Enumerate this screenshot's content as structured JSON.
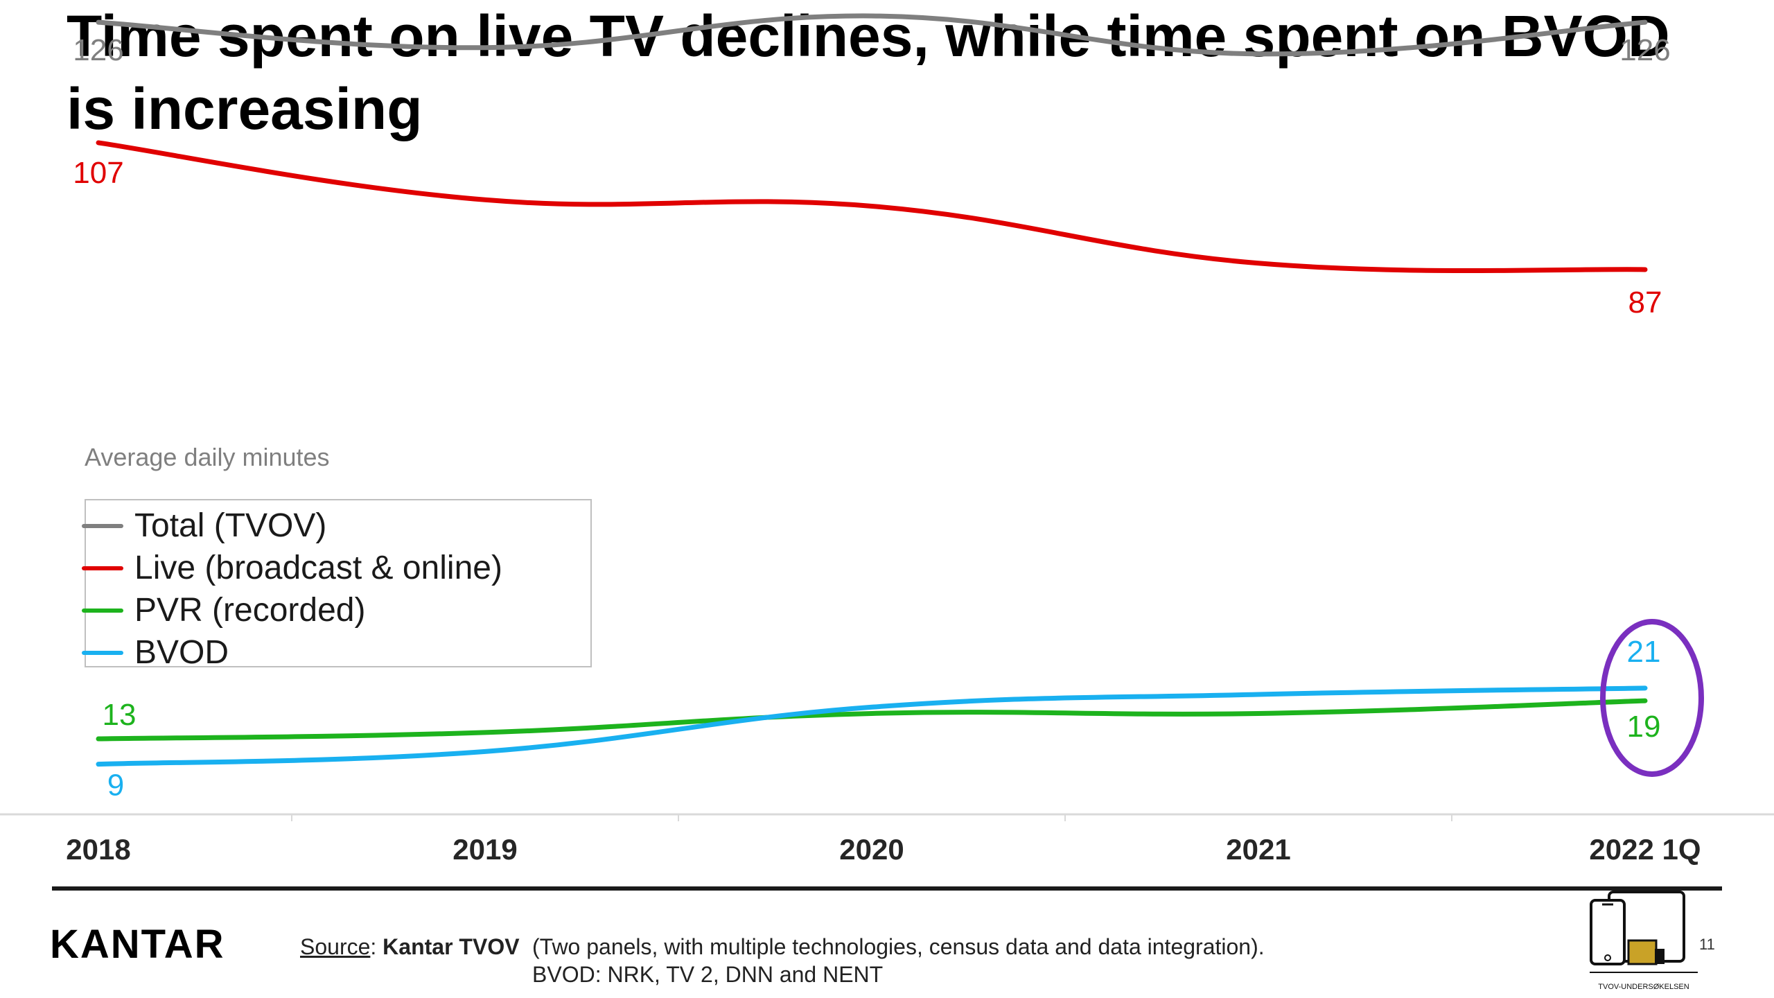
{
  "title": "Time spent on live TV declines, while time spent on BVOD is increasing",
  "chart_data": {
    "type": "line",
    "categories": [
      "2018",
      "2019",
      "2020",
      "2021",
      "2022 1Q"
    ],
    "ylabel": "Average daily minutes",
    "ylim": [
      0,
      135
    ],
    "grid": false,
    "legend_placement": "left, below the top lines",
    "series": [
      {
        "name": "Total (TVOV)",
        "color": "#7f7f7f",
        "values": [
          126,
          122,
          127,
          121,
          126
        ],
        "labels": [
          "126",
          "",
          "",
          "",
          "126"
        ]
      },
      {
        "name": "Live (broadcast & online)",
        "color": "#e00000",
        "values": [
          107,
          98,
          97,
          88,
          87
        ],
        "labels": [
          "107",
          "",
          "",
          "",
          "87"
        ]
      },
      {
        "name": "PVR (recorded)",
        "color": "#1db31d",
        "values": [
          13,
          14,
          17,
          17,
          19
        ],
        "labels": [
          "13",
          "",
          "",
          "",
          "19"
        ]
      },
      {
        "name": "BVOD",
        "color": "#19b0f0",
        "values": [
          9,
          11,
          18,
          20,
          21
        ],
        "labels": [
          "9",
          "",
          "",
          "",
          "21"
        ]
      }
    ],
    "annotation": "purple ellipse highlighting the 2022 1Q values of BVOD and PVR",
    "annotation_color": "#7a2fbf"
  },
  "footer": {
    "logo": "KANTAR",
    "source_label": "Source",
    "source_colon": ":",
    "source_name": "Kantar TVOV",
    "source_note_1": "(Two panels, with multiple technologies, census data and data integration).",
    "source_note_2": "BVOD: NRK, TV 2, DNN and NENT",
    "page_number": "11",
    "brand_caption": "TVOV-UNDERSØKELSEN"
  }
}
